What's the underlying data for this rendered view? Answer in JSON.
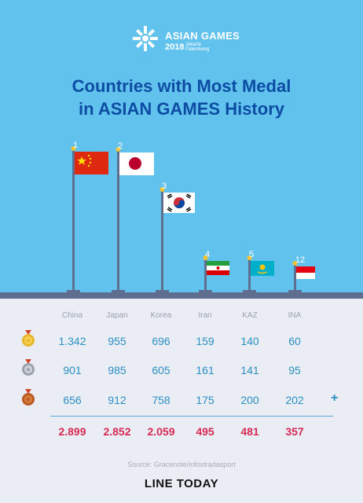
{
  "header": {
    "logo_title": "ASIAN GAMES",
    "logo_year": "2018",
    "logo_host": "Jakarta Palembang"
  },
  "title_line1": "Countries with Most Medal",
  "title_line2": "in ASIAN GAMES History",
  "chart_data": {
    "type": "table",
    "title": "Countries with Most Medal in ASIAN GAMES History",
    "categories": [
      "China",
      "Japan",
      "Korea",
      "Iran",
      "KAZ",
      "INA"
    ],
    "ranks": [
      "1",
      "2",
      "3",
      "4",
      "5",
      "12"
    ],
    "series": [
      {
        "name": "Gold",
        "values": [
          "1.342",
          "955",
          "696",
          "159",
          "140",
          "60"
        ]
      },
      {
        "name": "Silver",
        "values": [
          "901",
          "985",
          "605",
          "161",
          "141",
          "95"
        ]
      },
      {
        "name": "Bronze",
        "values": [
          "656",
          "912",
          "758",
          "175",
          "200",
          "202"
        ]
      }
    ],
    "totals": [
      "2.899",
      "2.852",
      "2.059",
      "495",
      "481",
      "357"
    ]
  },
  "colors": {
    "sky": "#62c2ee",
    "title": "#0c4da3",
    "values": "#2a8fc1",
    "totals": "#d62a54",
    "gold": "#e8b62a",
    "silver": "#b6bcc6",
    "bronze": "#c8682a"
  },
  "icons": [
    "gold-medal-icon",
    "silver-medal-icon",
    "bronze-medal-icon",
    "plus-icon"
  ],
  "plus": "+",
  "source": "Source: Gracenote/infostradasport",
  "brand": "LINE TODAY"
}
